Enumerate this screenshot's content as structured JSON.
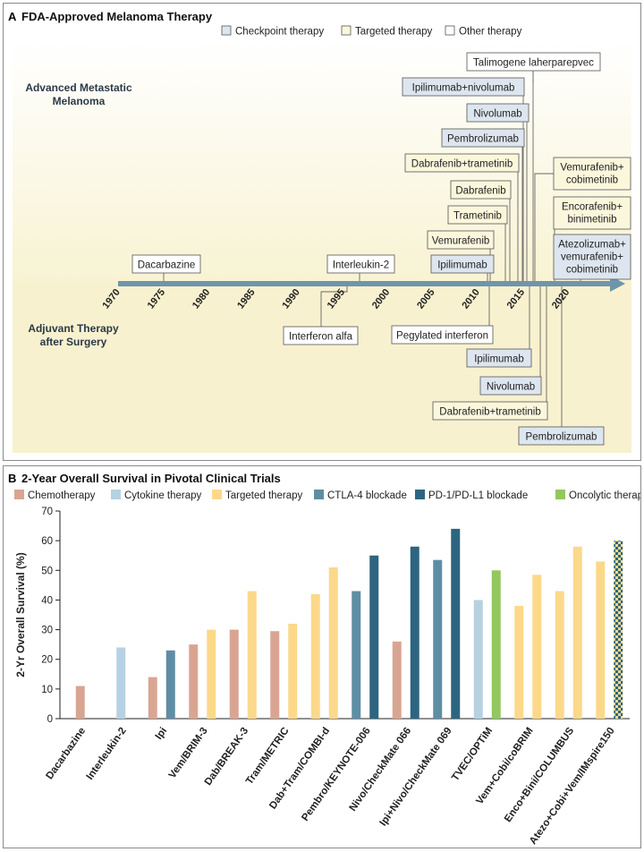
{
  "panel_a": {
    "label": "A",
    "title": "FDA-Approved Melanoma Therapy",
    "legend": [
      {
        "label": "Checkpoint therapy",
        "color": "#dde6ef"
      },
      {
        "label": "Targeted therapy",
        "color": "#fbf7dc"
      },
      {
        "label": "Other therapy",
        "color": "#ffffff"
      }
    ],
    "upper_section": "Advanced Metastatic\nMelanoma",
    "lower_section": "Adjuvant Therapy\nafter Surgery",
    "timeline_years": [
      "1970",
      "1975",
      "1980",
      "1985",
      "1990",
      "1995",
      "2000",
      "2005",
      "2010",
      "2015",
      "2020"
    ],
    "approvals": [
      {
        "label": "Dacarbazine",
        "year": 1975,
        "setting": "advanced",
        "kind": "other"
      },
      {
        "label": "Interleukin-2",
        "year": 1998,
        "setting": "advanced",
        "kind": "other"
      },
      {
        "label": "Ipilimumab",
        "year": 2011,
        "setting": "advanced",
        "kind": "checkpoint"
      },
      {
        "label": "Vemurafenib",
        "year": 2011,
        "setting": "advanced",
        "kind": "targeted"
      },
      {
        "label": "Trametinib",
        "year": 2013,
        "setting": "advanced",
        "kind": "targeted"
      },
      {
        "label": "Dabrafenib",
        "year": 2013,
        "setting": "advanced",
        "kind": "targeted"
      },
      {
        "label": "Dabrafenib+trametinib",
        "year": 2014,
        "setting": "advanced",
        "kind": "targeted"
      },
      {
        "label": "Pembrolizumab",
        "year": 2014,
        "setting": "advanced",
        "kind": "checkpoint"
      },
      {
        "label": "Nivolumab",
        "year": 2014,
        "setting": "advanced",
        "kind": "checkpoint"
      },
      {
        "label": "Ipilimumab+nivolumab",
        "year": 2015,
        "setting": "advanced",
        "kind": "checkpoint"
      },
      {
        "label": "Talimogene laherparepvec",
        "year": 2015,
        "setting": "advanced",
        "kind": "other"
      },
      {
        "label": "Vemurafenib+\ncobimetinib",
        "year": 2015,
        "setting": "advanced",
        "kind": "targeted"
      },
      {
        "label": "Encorafenib+\nbinimetinib",
        "year": 2018,
        "setting": "advanced",
        "kind": "targeted"
      },
      {
        "label": "Atezolizumab+\nvemurafenib+\ncobimetinib",
        "year": 2020,
        "setting": "advanced",
        "kind": "checkpoint"
      },
      {
        "label": "Interferon alfa",
        "year": 1995,
        "setting": "adjuvant",
        "kind": "other"
      },
      {
        "label": "Pegylated interferon",
        "year": 2011,
        "setting": "adjuvant",
        "kind": "other"
      },
      {
        "label": "Ipilimumab",
        "year": 2015,
        "setting": "adjuvant",
        "kind": "checkpoint"
      },
      {
        "label": "Nivolumab",
        "year": 2017,
        "setting": "adjuvant",
        "kind": "checkpoint"
      },
      {
        "label": "Dabrafenib+trametinib",
        "year": 2018,
        "setting": "adjuvant",
        "kind": "targeted"
      },
      {
        "label": "Pembrolizumab",
        "year": 2019,
        "setting": "adjuvant",
        "kind": "checkpoint"
      }
    ]
  },
  "panel_b": {
    "label": "B",
    "title": "2-Year Overall Survival in Pivotal Clinical Trials"
  },
  "chart_data": {
    "type": "bar",
    "title": "2-Year Overall Survival in Pivotal Clinical Trials",
    "xlabel": "",
    "ylabel": "2-Yr Overall Survival (%)",
    "ylim": [
      0,
      70
    ],
    "yticks": [
      "0",
      "10",
      "20",
      "30",
      "40",
      "50",
      "60",
      "70"
    ],
    "legend": [
      {
        "label": "Chemotherapy",
        "color": "#d9a593"
      },
      {
        "label": "Cytokine therapy",
        "color": "#b6d1e2"
      },
      {
        "label": "Targeted therapy",
        "color": "#fcd88a"
      },
      {
        "label": "CTLA-4 blockade",
        "color": "#5e8ea4"
      },
      {
        "label": "PD-1/PD-L1 blockade",
        "color": "#2d6580"
      },
      {
        "label": "Oncolytic therapy",
        "color": "#92c85f"
      }
    ],
    "categories": [
      "Dacarbazine",
      "Interleukin-2",
      "Ipi",
      "Vem/BRIM-3",
      "Dab/BREAK-3",
      "Tram/METRIC",
      "Dab+Tram/COMBI-d",
      "Pembro/KEYNOTE-006",
      "Nivo/CheckMate 066",
      "Ipi+Nivo/CheckMate 069",
      "TVEC/OPTiM",
      "Vem+Cobi/coBRIM",
      "Enco+Bini/COLUMBUS",
      "Atezo+Cobi+Vem/IMspire150"
    ],
    "bars": [
      [
        {
          "type": "Chemotherapy",
          "value": 11
        }
      ],
      [
        {
          "type": "Cytokine therapy",
          "value": 24
        }
      ],
      [
        {
          "type": "Chemotherapy",
          "value": 14
        },
        {
          "type": "CTLA-4 blockade",
          "value": 23
        }
      ],
      [
        {
          "type": "Chemotherapy",
          "value": 25
        },
        {
          "type": "Targeted therapy",
          "value": 30
        }
      ],
      [
        {
          "type": "Chemotherapy",
          "value": 30
        },
        {
          "type": "Targeted therapy",
          "value": 43
        }
      ],
      [
        {
          "type": "Chemotherapy",
          "value": 29.5
        },
        {
          "type": "Targeted therapy",
          "value": 32
        }
      ],
      [
        {
          "type": "Targeted therapy",
          "value": 42
        },
        {
          "type": "Targeted therapy",
          "value": 51
        }
      ],
      [
        {
          "type": "CTLA-4 blockade",
          "value": 43
        },
        {
          "type": "PD-1/PD-L1 blockade",
          "value": 55
        }
      ],
      [
        {
          "type": "Chemotherapy",
          "value": 26
        },
        {
          "type": "PD-1/PD-L1 blockade",
          "value": 58
        }
      ],
      [
        {
          "type": "CTLA-4 blockade",
          "value": 53.5
        },
        {
          "type": "PD-1/PD-L1 blockade",
          "value": 64
        }
      ],
      [
        {
          "type": "Cytokine therapy",
          "value": 40
        },
        {
          "type": "Oncolytic therapy",
          "value": 50
        }
      ],
      [
        {
          "type": "Targeted therapy",
          "value": 38
        },
        {
          "type": "Targeted therapy",
          "value": 48.5
        }
      ],
      [
        {
          "type": "Targeted therapy",
          "value": 43
        },
        {
          "type": "Targeted therapy",
          "value": 58
        }
      ],
      [
        {
          "type": "Targeted therapy",
          "value": 53
        },
        {
          "type": "Targeted therapy + PD-1/PD-L1 blockade",
          "value": 60
        }
      ]
    ]
  }
}
